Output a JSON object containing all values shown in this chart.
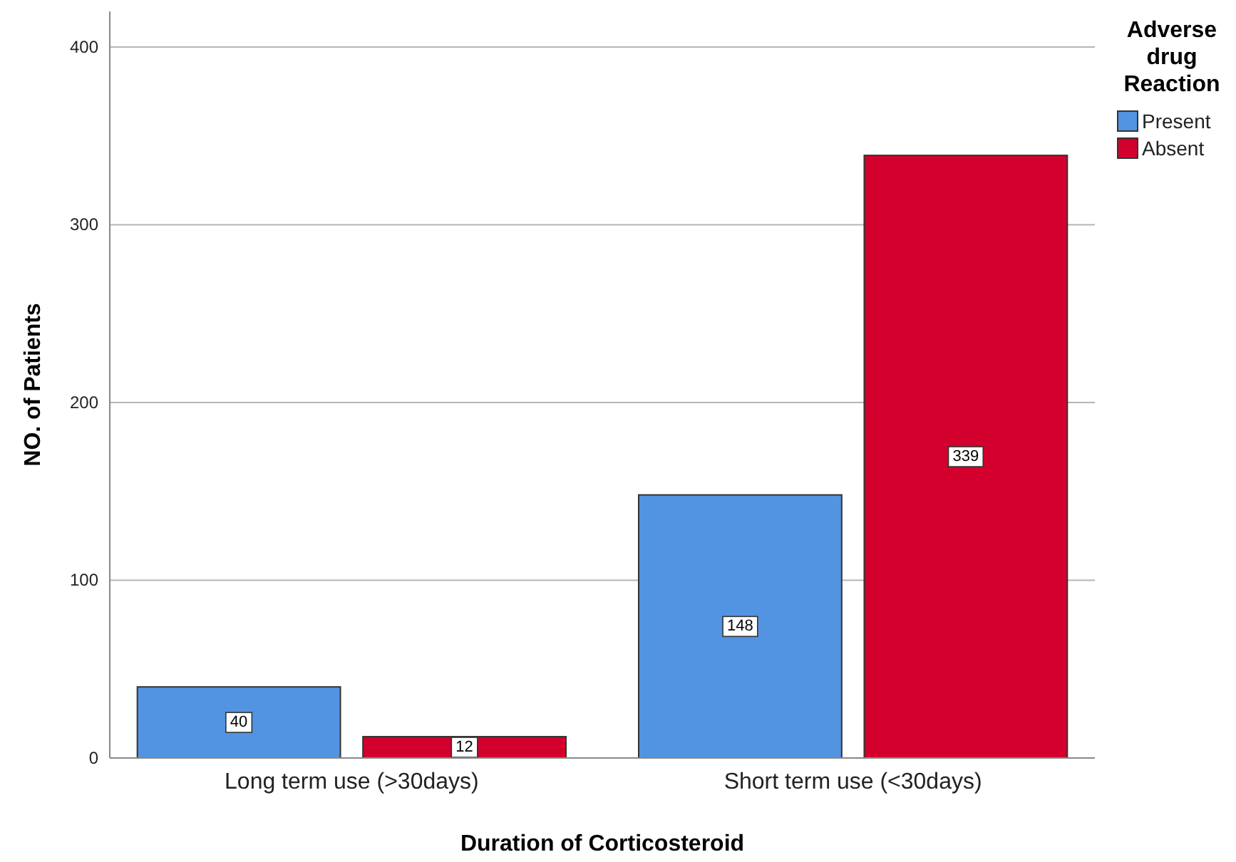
{
  "chart_data": {
    "type": "bar",
    "xlabel": "Duration of Corticosteroid",
    "ylabel": "NO. of Patients",
    "legend_title": "Adverse drug Reaction",
    "categories": [
      "Long term use (>30days)",
      "Short term use (<30days)"
    ],
    "series": [
      {
        "name": "Present",
        "color": "#5294e2",
        "values": [
          40,
          148
        ]
      },
      {
        "name": "Absent",
        "color": "#d3002d",
        "values": [
          12,
          339
        ]
      }
    ],
    "ylim": [
      0,
      420
    ],
    "yticks": [
      0,
      100,
      200,
      300,
      400
    ],
    "grid": "y",
    "legend": "top right",
    "data_labels": true
  }
}
